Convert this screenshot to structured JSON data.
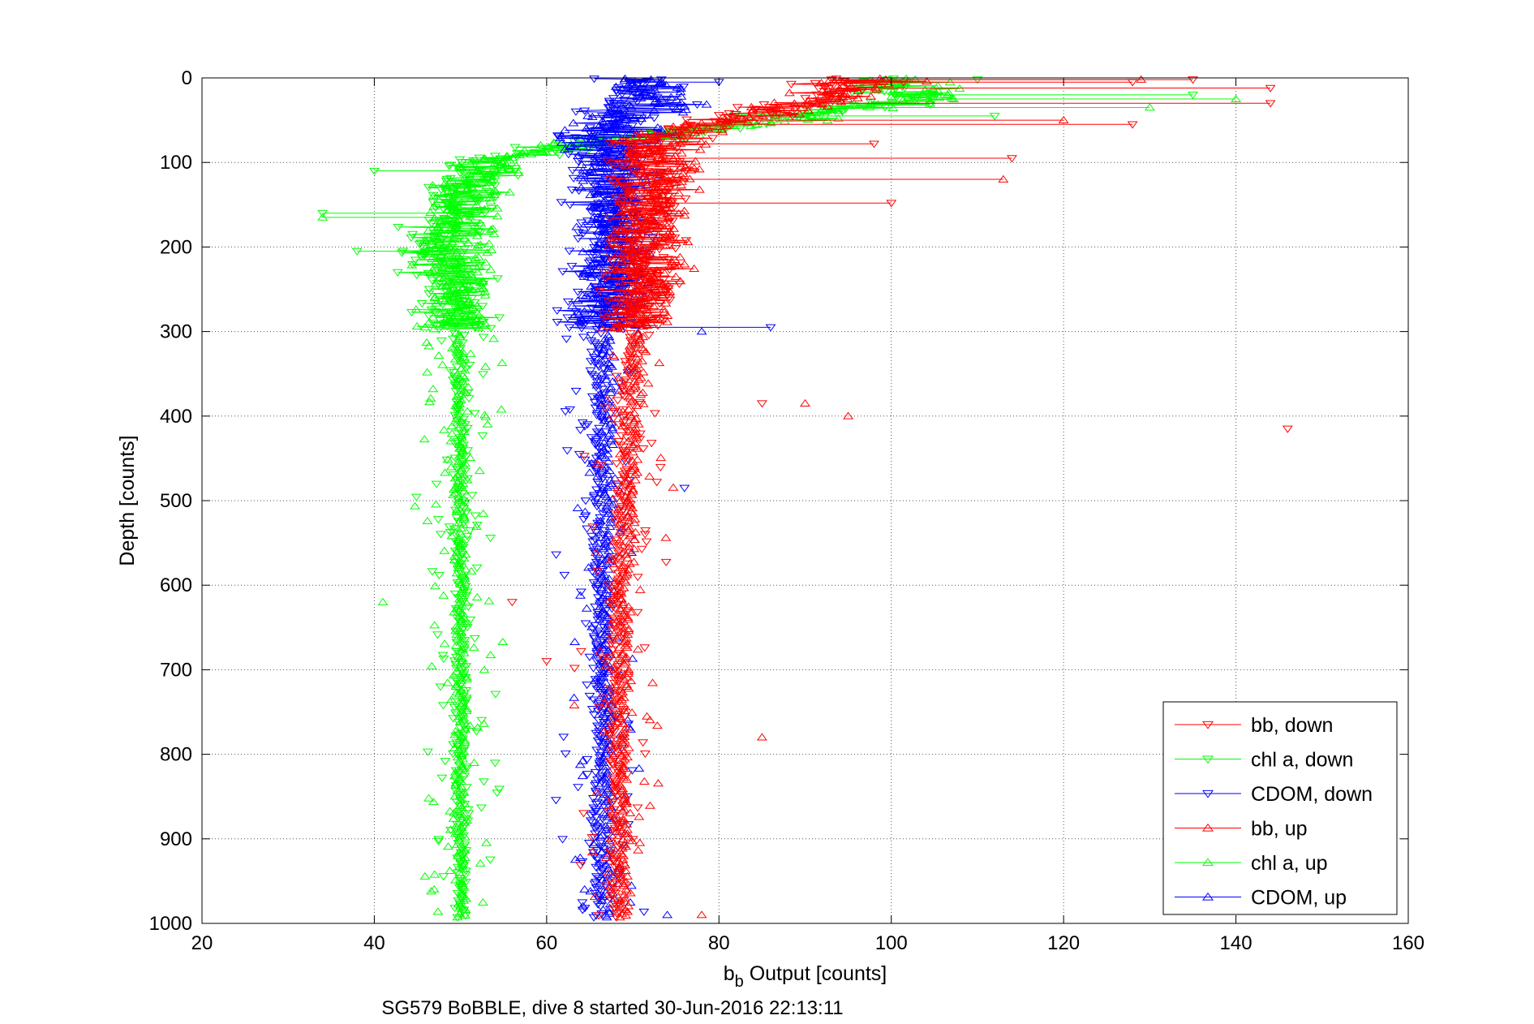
{
  "chart_data": {
    "type": "line",
    "xlabel_main": "b",
    "xlabel_sub": "b",
    "xlabel_rest": " Output [counts]",
    "ylabel": "Depth [counts]",
    "caption": "SG579 BoBBLE, dive 8 started 30-Jun-2016 22:13:11",
    "xlim": [
      20,
      160
    ],
    "ylim": [
      0,
      1000
    ],
    "y_reversed": true,
    "x_ticks": [
      "20",
      "40",
      "60",
      "80",
      "100",
      "120",
      "140",
      "160"
    ],
    "y_ticks": [
      "0",
      "100",
      "200",
      "300",
      "400",
      "500",
      "600",
      "700",
      "800",
      "900",
      "1000"
    ],
    "grid": true,
    "legend_position": "bottom-right",
    "series": [
      {
        "name": "bb, down",
        "color": "#ff0000",
        "marker": "triangle-down",
        "profile": [
          [
            0,
            95
          ],
          [
            25,
            92
          ],
          [
            50,
            80
          ],
          [
            75,
            72
          ],
          [
            100,
            72
          ],
          [
            150,
            72
          ],
          [
            200,
            71
          ],
          [
            250,
            71
          ],
          [
            300,
            70
          ],
          [
            400,
            69
          ],
          [
            500,
            69
          ],
          [
            600,
            68
          ],
          [
            700,
            68
          ],
          [
            800,
            68
          ],
          [
            900,
            68
          ],
          [
            1000,
            68
          ]
        ],
        "outliers": [
          [
            2,
            135
          ],
          [
            5,
            128
          ],
          [
            12,
            144
          ],
          [
            30,
            144
          ],
          [
            55,
            128
          ],
          [
            78,
            98
          ],
          [
            95,
            114
          ],
          [
            148,
            100
          ],
          [
            385,
            85
          ],
          [
            415,
            146
          ],
          [
            620,
            56
          ],
          [
            690,
            60
          ]
        ]
      },
      {
        "name": "chl a, down",
        "color": "#00ff00",
        "marker": "triangle-down",
        "profile": [
          [
            0,
            97
          ],
          [
            25,
            102
          ],
          [
            50,
            85
          ],
          [
            80,
            62
          ],
          [
            100,
            53
          ],
          [
            150,
            49
          ],
          [
            200,
            48
          ],
          [
            250,
            49
          ],
          [
            300,
            50
          ],
          [
            400,
            50
          ],
          [
            500,
            50
          ],
          [
            600,
            50
          ],
          [
            700,
            50
          ],
          [
            800,
            50
          ],
          [
            900,
            50
          ],
          [
            1000,
            50
          ]
        ],
        "outliers": [
          [
            2,
            110
          ],
          [
            20,
            135
          ],
          [
            45,
            112
          ],
          [
            110,
            40
          ],
          [
            205,
            38
          ],
          [
            160,
            34
          ]
        ]
      },
      {
        "name": "CDOM, down",
        "color": "#0000ff",
        "marker": "triangle-down",
        "profile": [
          [
            0,
            70
          ],
          [
            25,
            72
          ],
          [
            50,
            68
          ],
          [
            80,
            66
          ],
          [
            100,
            67
          ],
          [
            150,
            68
          ],
          [
            200,
            67
          ],
          [
            250,
            67
          ],
          [
            300,
            66
          ],
          [
            400,
            66
          ],
          [
            500,
            66
          ],
          [
            600,
            66
          ],
          [
            700,
            66
          ],
          [
            800,
            66
          ],
          [
            900,
            66
          ],
          [
            1000,
            66
          ]
        ],
        "outliers": [
          [
            5,
            80
          ],
          [
            295,
            86
          ],
          [
            485,
            76
          ]
        ]
      },
      {
        "name": "bb, up",
        "color": "#ff0000",
        "marker": "triangle-up",
        "profile": [
          [
            0,
            97
          ],
          [
            25,
            94
          ],
          [
            50,
            82
          ],
          [
            75,
            73
          ],
          [
            100,
            73
          ],
          [
            150,
            73
          ],
          [
            200,
            72
          ],
          [
            250,
            72
          ],
          [
            300,
            71
          ],
          [
            400,
            70
          ],
          [
            500,
            70
          ],
          [
            600,
            69
          ],
          [
            700,
            69
          ],
          [
            800,
            69
          ],
          [
            900,
            69
          ],
          [
            1000,
            69
          ]
        ],
        "outliers": [
          [
            2,
            129
          ],
          [
            50,
            120
          ],
          [
            120,
            113
          ],
          [
            385,
            90
          ],
          [
            400,
            95
          ],
          [
            780,
            85
          ],
          [
            990,
            78
          ]
        ]
      },
      {
        "name": "chl a, up",
        "color": "#00ff00",
        "marker": "triangle-up",
        "profile": [
          [
            0,
            99
          ],
          [
            25,
            104
          ],
          [
            50,
            88
          ],
          [
            80,
            63
          ],
          [
            100,
            54
          ],
          [
            150,
            50
          ],
          [
            200,
            49
          ],
          [
            250,
            50
          ],
          [
            300,
            50
          ],
          [
            400,
            50
          ],
          [
            500,
            50
          ],
          [
            600,
            50
          ],
          [
            700,
            50
          ],
          [
            800,
            50
          ],
          [
            900,
            50
          ],
          [
            1000,
            50
          ]
        ],
        "outliers": [
          [
            25,
            140
          ],
          [
            35,
            130
          ],
          [
            165,
            34
          ],
          [
            620,
            41
          ]
        ]
      },
      {
        "name": "CDOM, up",
        "color": "#0000ff",
        "marker": "triangle-up",
        "profile": [
          [
            0,
            71
          ],
          [
            25,
            73
          ],
          [
            50,
            69
          ],
          [
            80,
            67
          ],
          [
            100,
            68
          ],
          [
            150,
            68
          ],
          [
            200,
            68
          ],
          [
            250,
            68
          ],
          [
            300,
            67
          ],
          [
            400,
            67
          ],
          [
            500,
            67
          ],
          [
            600,
            67
          ],
          [
            700,
            67
          ],
          [
            800,
            67
          ],
          [
            900,
            67
          ],
          [
            1000,
            67
          ]
        ],
        "outliers": [
          [
            300,
            78
          ],
          [
            990,
            74
          ]
        ]
      }
    ]
  }
}
